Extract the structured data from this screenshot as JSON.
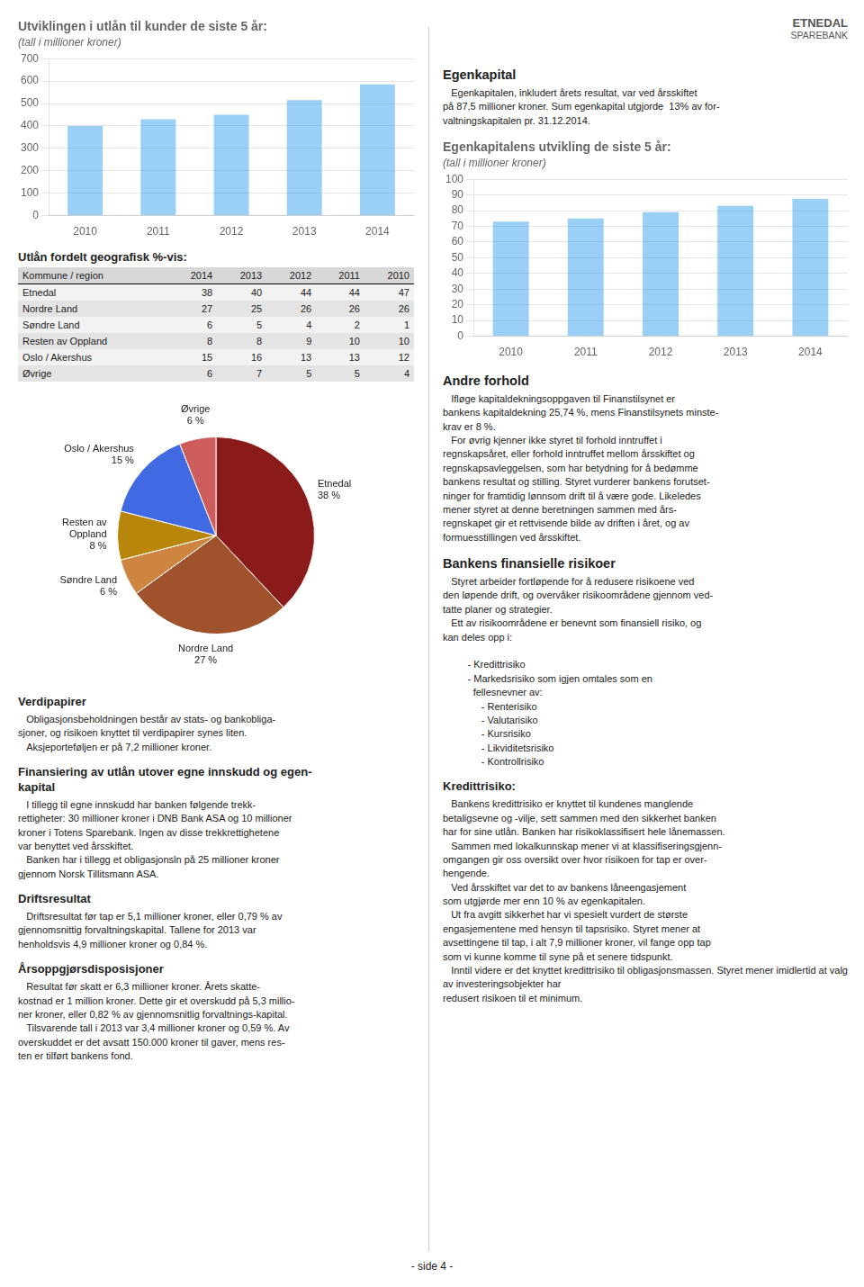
{
  "chart_data": [
    {
      "type": "bar",
      "title": "Utviklingen i utlån til kunder de siste 5 år:",
      "subtitle": "(tall i millioner kroner)",
      "categories": [
        "2010",
        "2011",
        "2012",
        "2013",
        "2014"
      ],
      "values": [
        400,
        430,
        450,
        515,
        585
      ],
      "ylim": [
        0,
        700
      ],
      "yticks": [
        0,
        100,
        200,
        300,
        400,
        500,
        600,
        700
      ],
      "grid": true
    },
    {
      "type": "table",
      "title": "Utlån fordelt geografisk %-vis:",
      "headers": [
        "Kommune / region",
        "2014",
        "2013",
        "2012",
        "2011",
        "2010"
      ],
      "rows": [
        [
          "Etnedal",
          38,
          40,
          44,
          44,
          47
        ],
        [
          "Nordre Land",
          27,
          25,
          26,
          26,
          26
        ],
        [
          "Søndre Land",
          6,
          5,
          4,
          2,
          1
        ],
        [
          "Resten av Oppland",
          8,
          8,
          9,
          10,
          10
        ],
        [
          "Oslo / Akershus",
          15,
          16,
          13,
          13,
          12
        ],
        [
          "Øvrige",
          6,
          7,
          5,
          5,
          4
        ]
      ]
    },
    {
      "type": "pie",
      "categories": [
        "Etnedal",
        "Nordre Land",
        "Søndre Land",
        "Resten av\nOppland",
        "Oslo / Akershus",
        "Øvrige"
      ],
      "values": [
        38,
        27,
        6,
        8,
        15,
        6
      ],
      "value_labels": [
        "38 %",
        "27 %",
        "6 %",
        "8 %",
        "15 %",
        "6 %"
      ],
      "colors": [
        "#8B1A1A",
        "#A0522D",
        "#CD853F",
        "#B8860B",
        "#4169E1",
        "#CD5C5C"
      ],
      "data_labels": true
    },
    {
      "type": "bar",
      "title": "Egenkapitalens utvikling de siste 5 år:",
      "subtitle": "(tall i millioner kroner)",
      "categories": [
        "2010",
        "2011",
        "2012",
        "2013",
        "2014"
      ],
      "values": [
        73,
        75,
        79,
        83,
        87.5
      ],
      "ylim": [
        0,
        100
      ],
      "yticks": [
        0,
        10,
        20,
        30,
        40,
        50,
        60,
        70,
        80,
        90,
        100
      ],
      "grid": true
    }
  ],
  "logo": [
    "ETNEDAL",
    "SPAREBANK"
  ],
  "page_number": "- side 4 -",
  "text_sections": [
    {
      "title": "Verdipapirer",
      "text": "   Obligasjonsbeholdningen består av stats- og bankobliga-\nsjoner, og risikoen knyttet til verdipapirer synes liten.\n   Aksjeporteføljen er på 7,2 millioner kroner."
    },
    {
      "title": "Finansiering av utlån utover egne innskudd og egen-\nkapital",
      "text": "   I tillegg til egne innskudd har banken følgende trekk-\nrettigheter: 30 millioner kroner i DNB Bank ASA og 10 millioner\nkroner i Totens Sparebank. Ingen av disse trekkrettighetene\nvar benyttet ved årsskiftet.\n   Banken har i tillegg et obligasjonsln på 25 millioner kroner\ngjennom Norsk Tillitsmann ASA."
    },
    {
      "title": "Driftsresultat",
      "text": "   Driftsresultat før tap er 5,1 millioner kroner, eller 0,79 % av\ngjennomsnittig forvaltningskapital. Tallene for 2013 var\nhenholdsvis 4,9 millioner kroner og 0,84 %."
    },
    {
      "title": "Årsoppgjørsdisposisjoner",
      "text": "   Resultat før skatt er 6,3 millioner kroner. Årets skatte-\nkostnad er 1 million kroner. Dette gir et overskudd på 5,3 millio-\nner kroner, eller 0,82 % av gjennomsnitlig forvaltnings-kapital.\n   Tilsvarende tall i 2013 var 3,4 millioner kroner og 0,59 %. Av\noverskuddet er det avsatt 150.000 kroner til gaver, mens res-\nten er tilført bankens fond."
    },
    {
      "title": "Egenkapital",
      "text": "   Egenkapitalen, inkludert årets resultat, var ved årsskiftet\npå 87,5 millioner kroner. Sum egenkapital utgjorde  13% av for-\nvaltningskapitalen pr. 31.12.2014."
    },
    {
      "title": "Andre forhold",
      "text": "   Ifløge kapitaldekningsoppgaven til Finanstilsynet er\nbankens kapitaldekning 25,74 %, mens Finanstilsynets minste-\nkrav er 8 %.\n   For øvrig kjenner ikke styret til forhold inntruffet i\nregnskapsåret, eller forhold inntruffet mellom årsskiftet og\nregnskapsavleggelsen, som har betydning for å bedømme\nbankens resultat og stilling. Styret vurderer bankens forutset-\nninger for framtidig lønnsom drift til å være gode. Likeledes\nmener styret at denne beretningen sammen med års-\nregnskapet gir et rettvisende bilde av driften i året, og av\nformuesstillingen ved årsskiftet."
    },
    {
      "title": "Bankens finansielle risikoer",
      "text": "   Styret arbeider fortløpende for å redusere risikoene ved\nden løpende drift, og overvåker risikoområdene gjennom ved-\ntatte planer og strategier.\n   Ett av risikoområdene er benevnt som finansiell risiko, og\nkan deles opp i:\n\n         - Kredittrisiko\n         - Markedsrisiko som igjen omtales som en\n           fellesnevner av:\n              - Renterisiko\n              - Valutarisiko\n              - Kursrisiko\n              - Likviditetsrisiko\n              - Kontrollrisiko"
    },
    {
      "title": "Kredittrisiko:",
      "text": "   Bankens kredittrisiko er knyttet til kundenes manglende\nbetaligsevne og -vilje, sett sammen med den sikkerhet banken\nhar for sine utlån. Banken har risikoklassifisert hele lånemassen.\n   Sammen med lokalkunnskap mener vi at klassifiseringsgjenn-\nomgangen gir oss oversikt over hvor risikoen for tap er over-\nhengende.\n   Ved årsskiftet var det to av bankens låneengasjement\nsom utgjørde mer enn 10 % av egenkapitalen.\n   Ut fra avgitt sikkerhet har vi spesielt vurdert de største\nengasjementene med hensyn til tapsrisiko. Styret mener at\navsettingene til tap, i alt 7,9 millioner kroner, vil fange opp tap\nsom vi kunne komme til syne på et senere tidspunkt.\n   Inntil videre er det knyttet kredittrisiko til obligasjonsmassen. Styret mener imidlertid at valg av investeringsobjekter har\nredusert risikoen til et minimum."
    }
  ]
}
